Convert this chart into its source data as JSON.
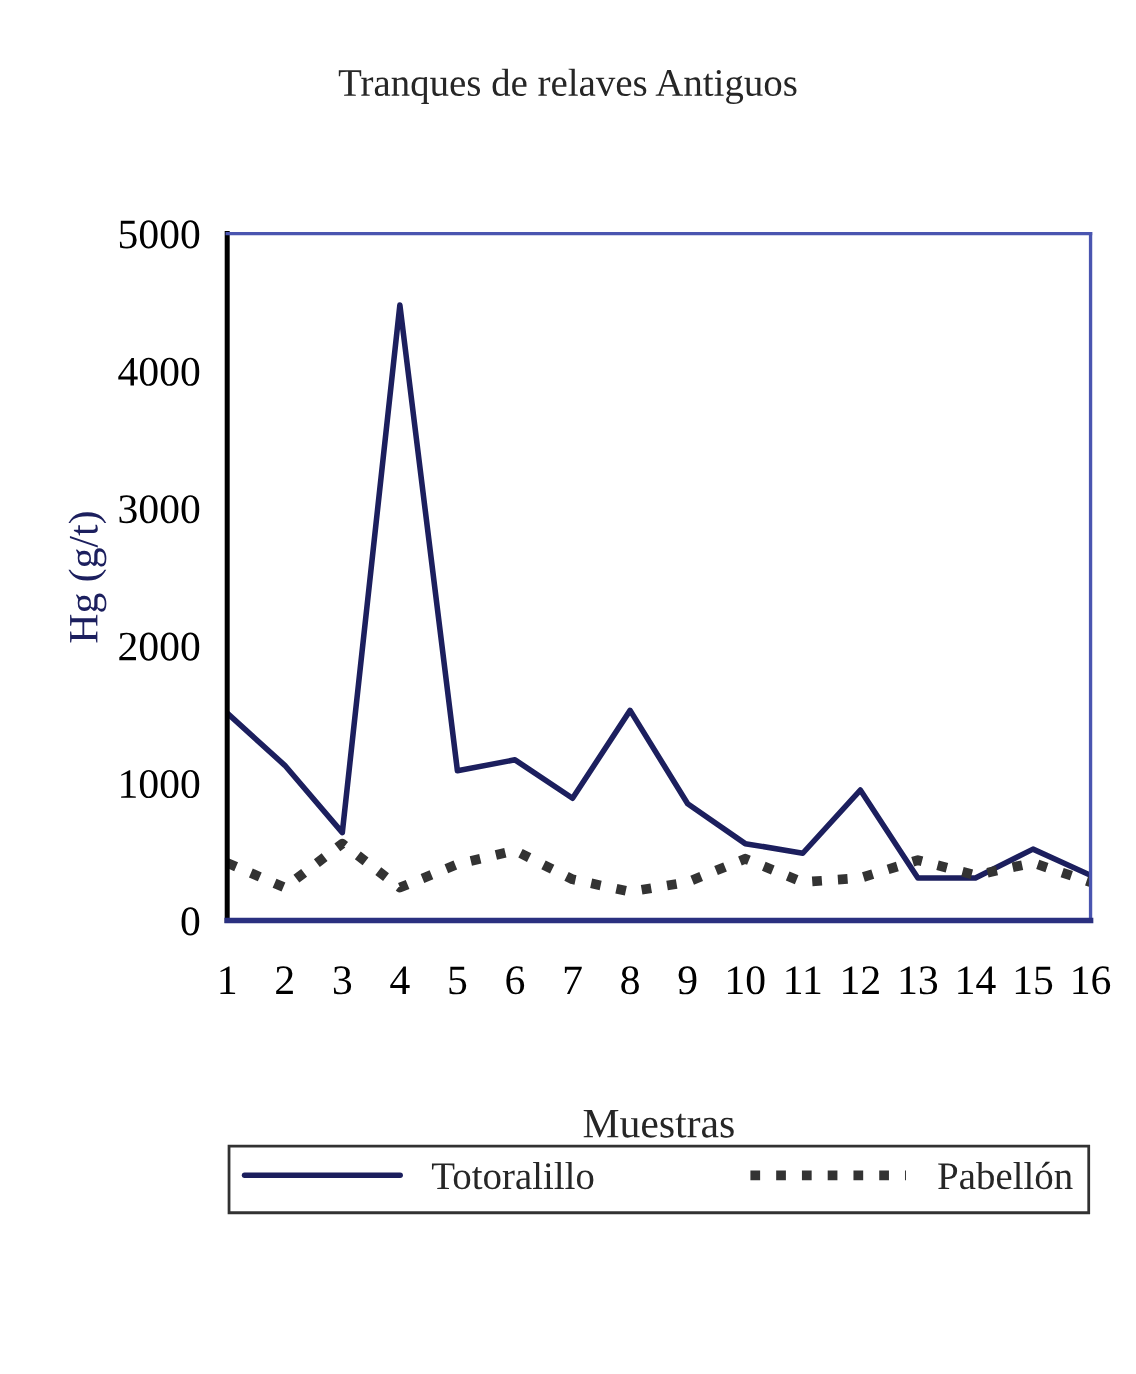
{
  "chart_data": {
    "type": "line",
    "title": "Tranques de relaves Antiguos",
    "xlabel": "Muestras",
    "ylabel": "Hg (g/t)",
    "categories": [
      "1",
      "2",
      "3",
      "4",
      "5",
      "6",
      "7",
      "8",
      "9",
      "10",
      "11",
      "12",
      "13",
      "14",
      "15",
      "16"
    ],
    "series": [
      {
        "name": "Totoralillo",
        "color": "#1c1f5e",
        "line_style": "solid",
        "values": [
          1510,
          1130,
          640,
          4480,
          1090,
          1170,
          890,
          1530,
          850,
          560,
          490,
          950,
          310,
          310,
          520,
          330
        ]
      },
      {
        "name": "Pabellón",
        "color": "#333333",
        "line_style": "dotted",
        "values": [
          420,
          240,
          560,
          240,
          410,
          510,
          300,
          210,
          280,
          450,
          280,
          310,
          440,
          330,
          420,
          280
        ]
      }
    ],
    "ylim": [
      0,
      5000
    ],
    "yticks": [
      0,
      1000,
      2000,
      3000,
      4000,
      5000
    ],
    "grid": false,
    "legend": "bottom"
  }
}
